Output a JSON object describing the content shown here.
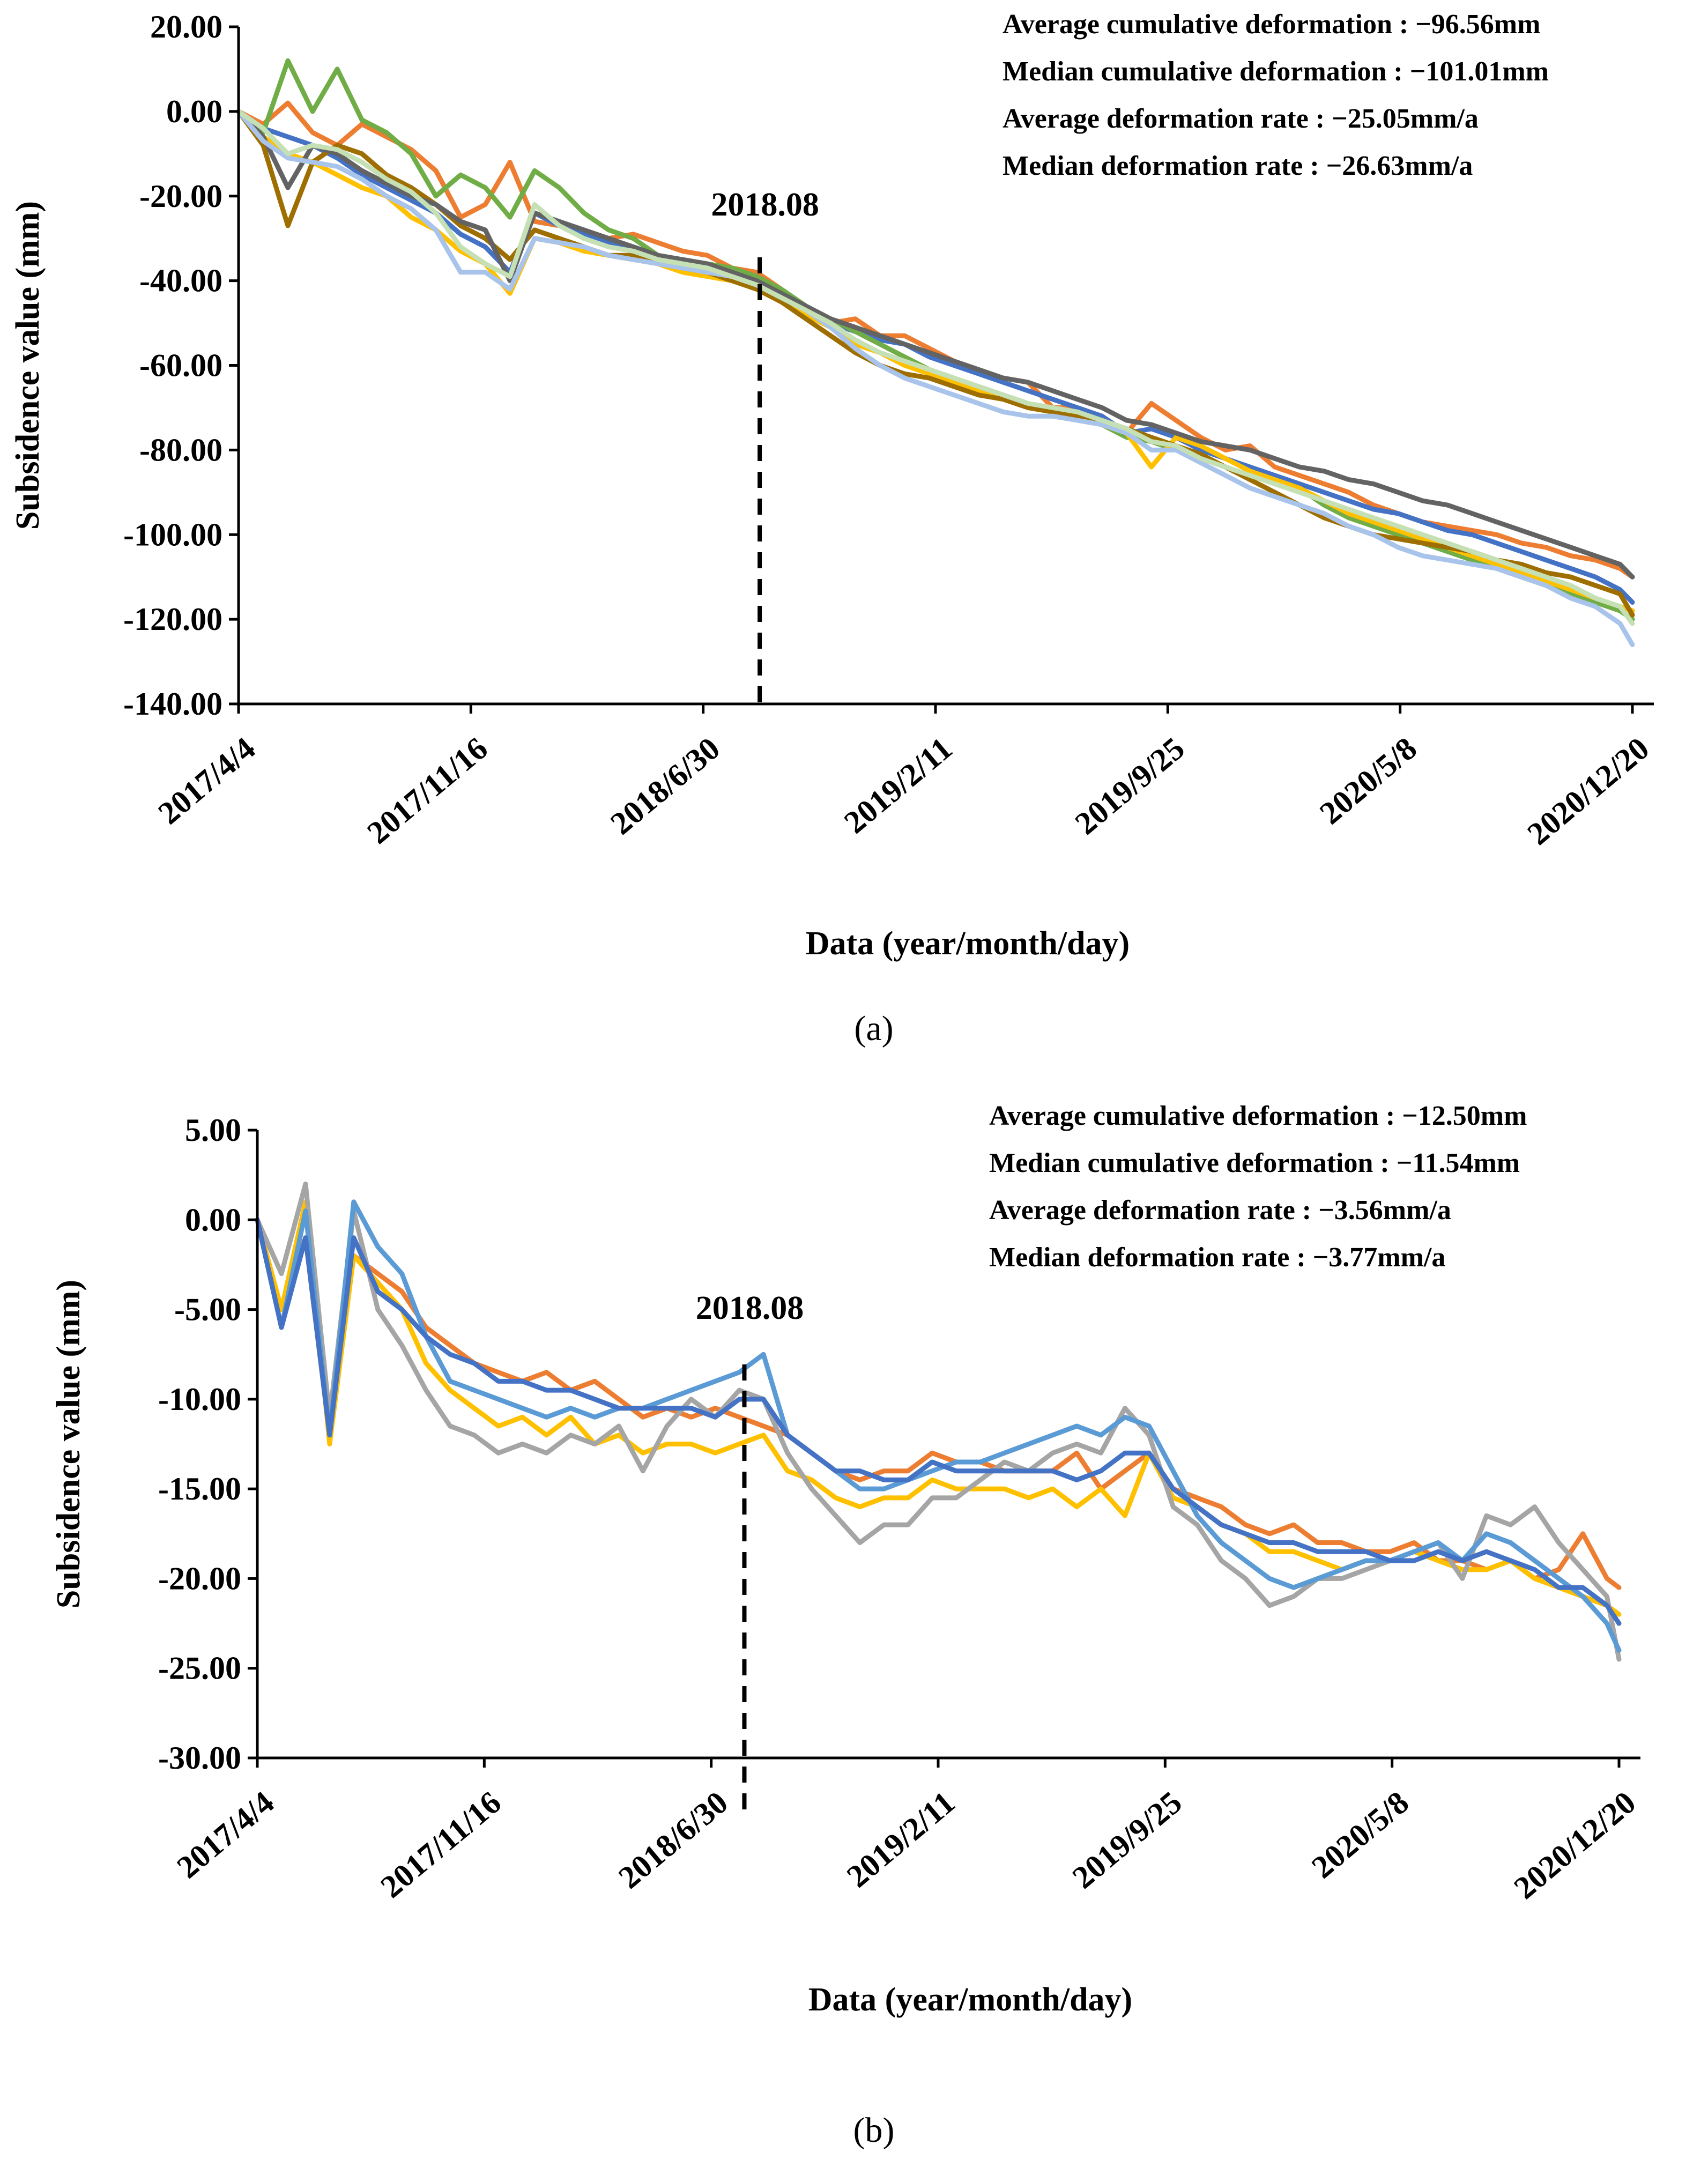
{
  "chart_data": [
    {
      "type": "line",
      "panel_label": "(a)",
      "xlabel": "Data (year/month/day)",
      "ylabel": "Subsidence value (mm)",
      "x_tick_labels": [
        "2017/4/4",
        "2017/11/16",
        "2018/6/30",
        "2019/2/11",
        "2019/9/25",
        "2020/5/8",
        "2020/12/20"
      ],
      "y_tick_labels": [
        "20.00",
        "0.00",
        "-20.00",
        "-40.00",
        "-60.00",
        "-80.00",
        "-100.00",
        "-120.00",
        "-140.00"
      ],
      "ylim": [
        -140,
        20
      ],
      "xlim": [
        "2017-04-04",
        "2020-12-20"
      ],
      "marker": {
        "date": "2018-08-24",
        "label": "2018.08"
      },
      "annotations": [
        "Average cumulative deformation : −96.56mm",
        "Median cumulative deformation : −101.01mm",
        "Average deformation rate : −25.05mm/a",
        "Median deformation rate : −26.63mm/a"
      ],
      "grid": false,
      "legend": "none",
      "x_dates": [
        "2017-04-04",
        "2017-04-28",
        "2017-05-22",
        "2017-06-15",
        "2017-07-09",
        "2017-08-02",
        "2017-08-26",
        "2017-09-19",
        "2017-10-13",
        "2017-11-06",
        "2017-11-30",
        "2017-12-24",
        "2018-01-17",
        "2018-02-10",
        "2018-03-06",
        "2018-03-30",
        "2018-04-23",
        "2018-05-17",
        "2018-06-10",
        "2018-07-04",
        "2018-07-28",
        "2018-08-21",
        "2018-09-14",
        "2018-10-08",
        "2018-11-01",
        "2018-11-25",
        "2018-12-19",
        "2019-01-12",
        "2019-02-05",
        "2019-03-01",
        "2019-03-25",
        "2019-04-18",
        "2019-05-12",
        "2019-06-05",
        "2019-06-29",
        "2019-07-23",
        "2019-08-16",
        "2019-09-09",
        "2019-10-03",
        "2019-10-27",
        "2019-11-20",
        "2019-12-14",
        "2020-01-07",
        "2020-01-31",
        "2020-02-24",
        "2020-03-19",
        "2020-04-12",
        "2020-05-06",
        "2020-05-30",
        "2020-06-23",
        "2020-07-17",
        "2020-08-10",
        "2020-09-03",
        "2020-09-27",
        "2020-10-21",
        "2020-11-14",
        "2020-12-08",
        "2020-12-20"
      ],
      "series": [
        {
          "color": "#ED7D31",
          "values": [
            0,
            -3,
            2,
            -5,
            -8,
            -3,
            -6,
            -9,
            -14,
            -25,
            -22,
            -12,
            -26,
            -27,
            -28,
            -30,
            -29,
            -31,
            -33,
            -34,
            -37,
            -38,
            -42,
            -46,
            -50,
            -49,
            -53,
            -53,
            -56,
            -59,
            -61,
            -63,
            -64,
            -70,
            -70,
            -72,
            -76,
            -69,
            -73,
            -77,
            -80,
            -79,
            -84,
            -86,
            -88,
            -90,
            -93,
            -95,
            -97,
            -98,
            -99,
            -100,
            -102,
            -103,
            -105,
            -106,
            -108,
            -110
          ]
        },
        {
          "color": "#4472C4",
          "values": [
            0,
            -4,
            -6,
            -8,
            -11,
            -15,
            -18,
            -21,
            -24,
            -29,
            -32,
            -38,
            -24,
            -27,
            -29,
            -31,
            -32,
            -34,
            -36,
            -37,
            -38,
            -40,
            -43,
            -47,
            -50,
            -52,
            -54,
            -55,
            -58,
            -60,
            -62,
            -64,
            -66,
            -68,
            -70,
            -72,
            -76,
            -75,
            -77,
            -80,
            -82,
            -84,
            -86,
            -88,
            -90,
            -92,
            -94,
            -95,
            -97,
            -99,
            -100,
            -102,
            -104,
            -106,
            -108,
            -110,
            -113,
            -116
          ]
        },
        {
          "color": "#70AD47",
          "values": [
            0,
            -5,
            12,
            0,
            10,
            -2,
            -5,
            -10,
            -20,
            -15,
            -18,
            -25,
            -14,
            -18,
            -24,
            -28,
            -30,
            -34,
            -35,
            -36,
            -37,
            -39,
            -42,
            -46,
            -49,
            -52,
            -55,
            -58,
            -61,
            -63,
            -65,
            -67,
            -69,
            -71,
            -72,
            -74,
            -77,
            -78,
            -80,
            -82,
            -84,
            -86,
            -87,
            -89,
            -93,
            -96,
            -98,
            -100,
            -102,
            -104,
            -106,
            -108,
            -110,
            -112,
            -114,
            -116,
            -118,
            -120
          ]
        },
        {
          "color": "#FFC000",
          "values": [
            0,
            -6,
            -10,
            -12,
            -15,
            -18,
            -20,
            -25,
            -28,
            -33,
            -36,
            -43,
            -30,
            -31,
            -33,
            -34,
            -35,
            -36,
            -38,
            -39,
            -40,
            -42,
            -45,
            -48,
            -51,
            -55,
            -57,
            -60,
            -62,
            -64,
            -66,
            -68,
            -70,
            -71,
            -72,
            -74,
            -76,
            -84,
            -77,
            -79,
            -82,
            -85,
            -87,
            -89,
            -92,
            -95,
            -97,
            -99,
            -101,
            -103,
            -105,
            -107,
            -109,
            -111,
            -113,
            -115,
            -117,
            -118
          ]
        },
        {
          "color": "#9E6E00",
          "values": [
            0,
            -8,
            -27,
            -12,
            -8,
            -10,
            -15,
            -18,
            -22,
            -27,
            -30,
            -35,
            -28,
            -30,
            -32,
            -34,
            -34,
            -36,
            -37,
            -38,
            -40,
            -42,
            -45,
            -49,
            -53,
            -57,
            -60,
            -62,
            -63,
            -65,
            -67,
            -68,
            -70,
            -71,
            -72,
            -73,
            -75,
            -77,
            -79,
            -81,
            -84,
            -87,
            -90,
            -93,
            -96,
            -98,
            -100,
            -101,
            -102,
            -103,
            -104,
            -106,
            -107,
            -109,
            -110,
            -112,
            -114,
            -119
          ]
        },
        {
          "color": "#636363",
          "values": [
            0,
            -6,
            -18,
            -8,
            -10,
            -14,
            -17,
            -20,
            -22,
            -26,
            -28,
            -40,
            -24,
            -26,
            -28,
            -30,
            -32,
            -34,
            -35,
            -36,
            -38,
            -40,
            -43,
            -46,
            -49,
            -51,
            -53,
            -55,
            -57,
            -59,
            -61,
            -63,
            -64,
            -66,
            -68,
            -70,
            -73,
            -74,
            -76,
            -78,
            -79,
            -80,
            -82,
            -84,
            -85,
            -87,
            -88,
            -90,
            -92,
            -93,
            -95,
            -97,
            -99,
            -101,
            -103,
            -105,
            -107,
            -110
          ]
        },
        {
          "color": "#A9C4EB",
          "values": [
            0,
            -7,
            -11,
            -12,
            -13,
            -16,
            -20,
            -23,
            -28,
            -38,
            -38,
            -42,
            -30,
            -31,
            -32,
            -34,
            -35,
            -36,
            -37,
            -38,
            -39,
            -41,
            -44,
            -47,
            -51,
            -56,
            -60,
            -63,
            -65,
            -67,
            -69,
            -71,
            -72,
            -72,
            -73,
            -74,
            -76,
            -80,
            -80,
            -83,
            -86,
            -89,
            -91,
            -93,
            -95,
            -98,
            -100,
            -103,
            -105,
            -106,
            -107,
            -108,
            -110,
            -112,
            -115,
            -117,
            -121,
            -126
          ]
        },
        {
          "color": "#C5E0B4",
          "values": [
            0,
            -4,
            -10,
            -8,
            -9,
            -12,
            -16,
            -19,
            -24,
            -32,
            -36,
            -39,
            -22,
            -27,
            -30,
            -32,
            -33,
            -35,
            -36,
            -37,
            -39,
            -41,
            -44,
            -47,
            -50,
            -54,
            -57,
            -59,
            -61,
            -63,
            -65,
            -67,
            -69,
            -70,
            -71,
            -73,
            -75,
            -78,
            -79,
            -82,
            -84,
            -86,
            -88,
            -90,
            -92,
            -94,
            -96,
            -98,
            -100,
            -102,
            -104,
            -106,
            -108,
            -110,
            -112,
            -115,
            -117,
            -121
          ]
        }
      ]
    },
    {
      "type": "line",
      "panel_label": "(b)",
      "xlabel": "Data (year/month/day)",
      "ylabel": "Subsidence value (mm)",
      "x_tick_labels": [
        "2017/4/4",
        "2017/11/16",
        "2018/6/30",
        "2019/2/11",
        "2019/9/25",
        "2020/5/8",
        "2020/12/20"
      ],
      "y_tick_labels": [
        "5.00",
        "0.00",
        "-5.00",
        "-10.00",
        "-15.00",
        "-20.00",
        "-25.00",
        "-30.00"
      ],
      "ylim": [
        -30,
        5
      ],
      "xlim": [
        "2017-04-04",
        "2020-12-20"
      ],
      "marker": {
        "date": "2018-08-02",
        "label": "2018.08"
      },
      "annotations": [
        "Average cumulative deformation : −12.50mm",
        "Median cumulative deformation : −11.54mm",
        "Average deformation rate : −3.56mm/a",
        "Median deformation rate : −3.77mm/a"
      ],
      "grid": false,
      "legend": "none",
      "x_dates": [
        "2017-04-04",
        "2017-04-28",
        "2017-05-22",
        "2017-06-15",
        "2017-07-09",
        "2017-08-02",
        "2017-08-26",
        "2017-09-19",
        "2017-10-13",
        "2017-11-06",
        "2017-11-30",
        "2017-12-24",
        "2018-01-17",
        "2018-02-10",
        "2018-03-06",
        "2018-03-30",
        "2018-04-23",
        "2018-05-17",
        "2018-06-10",
        "2018-07-04",
        "2018-07-28",
        "2018-08-21",
        "2018-09-14",
        "2018-10-08",
        "2018-11-01",
        "2018-11-25",
        "2018-12-19",
        "2019-01-12",
        "2019-02-05",
        "2019-03-01",
        "2019-03-25",
        "2019-04-18",
        "2019-05-12",
        "2019-06-05",
        "2019-06-29",
        "2019-07-23",
        "2019-08-16",
        "2019-09-09",
        "2019-10-03",
        "2019-10-27",
        "2019-11-20",
        "2019-12-14",
        "2020-01-07",
        "2020-01-31",
        "2020-02-24",
        "2020-03-19",
        "2020-04-12",
        "2020-05-06",
        "2020-05-30",
        "2020-06-23",
        "2020-07-17",
        "2020-08-10",
        "2020-09-03",
        "2020-09-27",
        "2020-10-21",
        "2020-11-14",
        "2020-12-08",
        "2020-12-20"
      ],
      "series": [
        {
          "color": "#ED7D31",
          "values": [
            0,
            -5,
            -1,
            -12,
            -2,
            -3,
            -4,
            -6,
            -7,
            -8,
            -8.5,
            -9,
            -8.5,
            -9.5,
            -9,
            -10,
            -11,
            -10.5,
            -11,
            -10.5,
            -11,
            -11.5,
            -12,
            -13,
            -14,
            -14.5,
            -14,
            -14,
            -13,
            -13.5,
            -13.5,
            -14,
            -14,
            -14,
            -13,
            -15,
            -14,
            -13,
            -15,
            -15.5,
            -16,
            -17,
            -17.5,
            -17,
            -18,
            -18,
            -18.5,
            -18.5,
            -18,
            -19,
            -19,
            -19.5,
            -19,
            -20,
            -19.5,
            -17.5,
            -20,
            -20.5
          ]
        },
        {
          "color": "#FFC000",
          "values": [
            0,
            -5,
            1,
            -12.5,
            -2,
            -3.5,
            -5,
            -8,
            -9.5,
            -10.5,
            -11.5,
            -11,
            -12,
            -11,
            -12.5,
            -12,
            -13,
            -12.5,
            -12.5,
            -13,
            -12.5,
            -12,
            -14,
            -14.5,
            -15.5,
            -16,
            -15.5,
            -15.5,
            -14.5,
            -15,
            -15,
            -15,
            -15.5,
            -15,
            -16,
            -15,
            -16.5,
            -13,
            -15.5,
            -16,
            -17,
            -17.5,
            -18.5,
            -18.5,
            -19,
            -19.5,
            -19,
            -19,
            -18.5,
            -19,
            -19.5,
            -19.5,
            -19,
            -20,
            -20.5,
            -21,
            -21.5,
            -22
          ]
        },
        {
          "color": "#A5A5A5",
          "values": [
            0,
            -3,
            2,
            -11,
            0.5,
            -5,
            -7,
            -9.5,
            -11.5,
            -12,
            -13,
            -12.5,
            -13,
            -12,
            -12.5,
            -11.5,
            -14,
            -11.5,
            -10,
            -11,
            -9.5,
            -10,
            -13,
            -15,
            -16.5,
            -18,
            -17,
            -17,
            -15.5,
            -15.5,
            -14.5,
            -13.5,
            -14,
            -13,
            -12.5,
            -13,
            -10.5,
            -12,
            -16,
            -17,
            -19,
            -20,
            -21.5,
            -21,
            -20,
            -20,
            -19.5,
            -19,
            -18.5,
            -18,
            -20,
            -16.5,
            -17,
            -16,
            -18,
            -19.5,
            -21,
            -24.5
          ]
        },
        {
          "color": "#5B9BD5",
          "values": [
            0,
            -6,
            0.5,
            -12,
            1,
            -1.5,
            -3,
            -6.5,
            -9,
            -9.5,
            -10,
            -10.5,
            -11,
            -10.5,
            -11,
            -10.5,
            -10.5,
            -10,
            -9.5,
            -9,
            -8.5,
            -7.5,
            -12,
            -13,
            -14,
            -15,
            -15,
            -14.5,
            -14,
            -13.5,
            -13.5,
            -13,
            -12.5,
            -12,
            -11.5,
            -12,
            -11,
            -11.5,
            -14,
            -16.5,
            -18,
            -19,
            -20,
            -20.5,
            -20,
            -19.5,
            -19,
            -19,
            -18.5,
            -18,
            -19,
            -17.5,
            -18,
            -19,
            -20,
            -21,
            -22.5,
            -24
          ]
        },
        {
          "color": "#4472C4",
          "values": [
            0,
            -6,
            -1,
            -12,
            -1,
            -4,
            -5,
            -6.5,
            -7.5,
            -8,
            -9,
            -9,
            -9.5,
            -9.5,
            -10,
            -10.5,
            -10.5,
            -10.5,
            -10.5,
            -11,
            -10,
            -10,
            -12,
            -13,
            -14,
            -14,
            -14.5,
            -14.5,
            -13.5,
            -14,
            -14,
            -14,
            -14,
            -14,
            -14.5,
            -14,
            -13,
            -13,
            -15,
            -16,
            -17,
            -17.5,
            -18,
            -18,
            -18.5,
            -18.5,
            -18.5,
            -19,
            -19,
            -18.5,
            -19,
            -18.5,
            -19,
            -19.5,
            -20.5,
            -20.5,
            -21.5,
            -22.5
          ]
        }
      ]
    }
  ]
}
